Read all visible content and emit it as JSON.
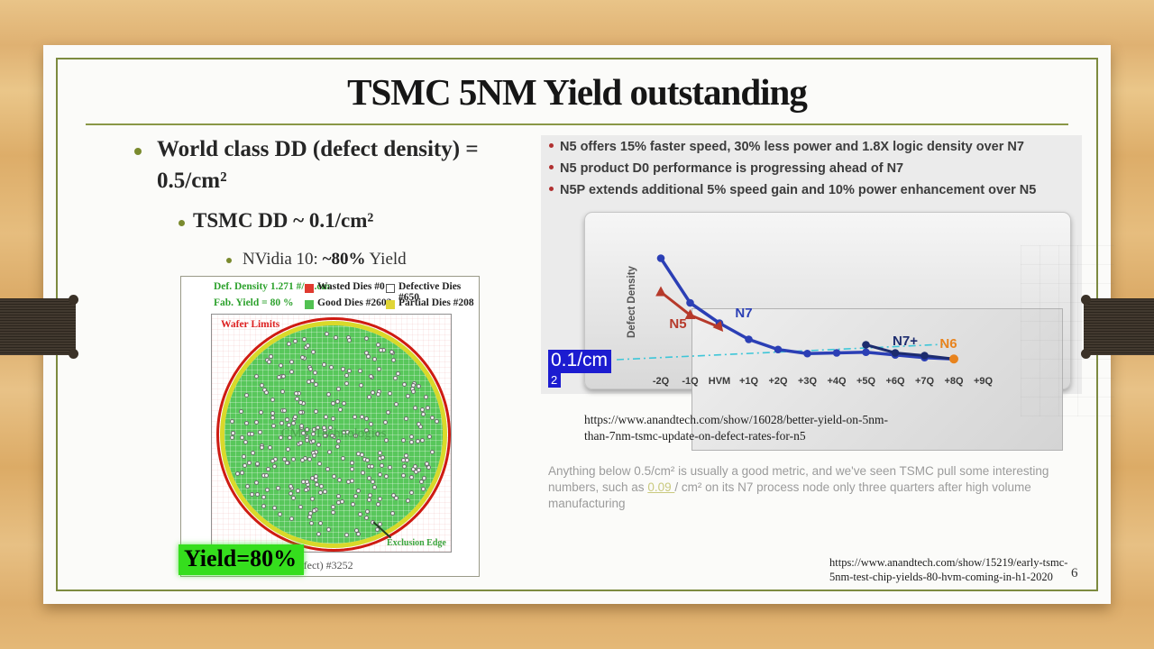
{
  "slide": {
    "title": "TSMC 5NM Yield outstanding",
    "page_number": "6"
  },
  "left": {
    "bullet1": "World class DD (defect density) = 0.5/cm²",
    "bullet2": "TSMC DD ~ 0.1/cm²",
    "bullet3_prefix": "NVidia 10: ",
    "bullet3_bold": "~80%",
    "bullet3_suffix": " Yield"
  },
  "wafer": {
    "legend": {
      "def_density": "Def. Density 1.271 #/sq.cm",
      "fab_yield": "Fab. Yield = 80 %",
      "wasted": {
        "label": "Wasted Dies #0",
        "color": "#e03a2f"
      },
      "defective": {
        "label": "Defective Dies #650",
        "color": "#ffffff"
      },
      "good": {
        "label": "Good Dies #2602",
        "color": "#52c152"
      },
      "partial": {
        "label": "Partial Dies #208",
        "color": "#e0d536"
      }
    },
    "wafer_limits": "Wafer Limits",
    "exclusion_edge": "Exclusion Edge",
    "watermark": "CMY Technologies",
    "caption_fragment": "t defect) #3252",
    "yield_badge": {
      "text": "Yield=80%",
      "highlight": "#35de1d"
    }
  },
  "right": {
    "bullets": [
      "N5 offers 15% faster speed, 30% less power and 1.8X logic density over N7",
      "N5 product D0 performance is progressing ahead of N7",
      "N5P extends additional 5% speed gain and 10% power enhancement over N5"
    ],
    "annotation": {
      "line1": "0.1/cm",
      "line2": "2",
      "highlight": "#1c1cd0"
    },
    "source_url_line1": "https://www.anandtech.com/show/16028/better-yield-on-5nm-",
    "source_url_line2": "than-7nm-tsmc-update-on-defect-rates-for-n5",
    "quote": {
      "part1": " Anything below 0.5/cm² is usually a good metric, and we've seen TSMC pull some interesting numbers, such as ",
      "link": "0.09 ",
      "part2": "/ cm² on its N7 process node only three quarters after high volume manufacturing"
    },
    "source2_url_line1": "https://www.anandtech.com/show/15219/early-tsmc-",
    "source2_url_line2": "5nm-test-chip-yields-80-hvm-coming-in-h1-2020"
  },
  "chart_data": {
    "type": "line",
    "title": "",
    "xlabel": "",
    "ylabel": "Defect Density",
    "categories": [
      "-2Q",
      "-1Q",
      "HVM",
      "+1Q",
      "+2Q",
      "+3Q",
      "+4Q",
      "+5Q",
      "+6Q",
      "+7Q",
      "+8Q",
      "+9Q"
    ],
    "series": [
      {
        "name": "N7",
        "color": "#2b3fb5",
        "marker": "circle",
        "start_index": 0,
        "values": [
          0.85,
          0.52,
          0.37,
          0.25,
          0.175,
          0.145,
          0.15,
          0.155,
          0.135,
          0.115,
          0.105
        ]
      },
      {
        "name": "N5",
        "color": "#b63a2b",
        "marker": "triangle",
        "start_index": 0,
        "values": [
          0.6,
          0.43,
          0.34
        ]
      },
      {
        "name": "N7+",
        "color": "#1d2c6e",
        "marker": "circle",
        "start_index": 7,
        "values": [
          0.21,
          0.15,
          0.13,
          0.105
        ]
      },
      {
        "name": "N6",
        "color": "#e8831d",
        "marker": "circle",
        "start_index": 10,
        "values": [
          0.105
        ]
      }
    ],
    "reference_line": {
      "value": 0.1,
      "color": "#3ec6d8",
      "style": "dash-dot",
      "label": "0.1/cm²"
    },
    "ylim": [
      0,
      1.05
    ],
    "grid": false,
    "legend_position": "inline-labels"
  }
}
